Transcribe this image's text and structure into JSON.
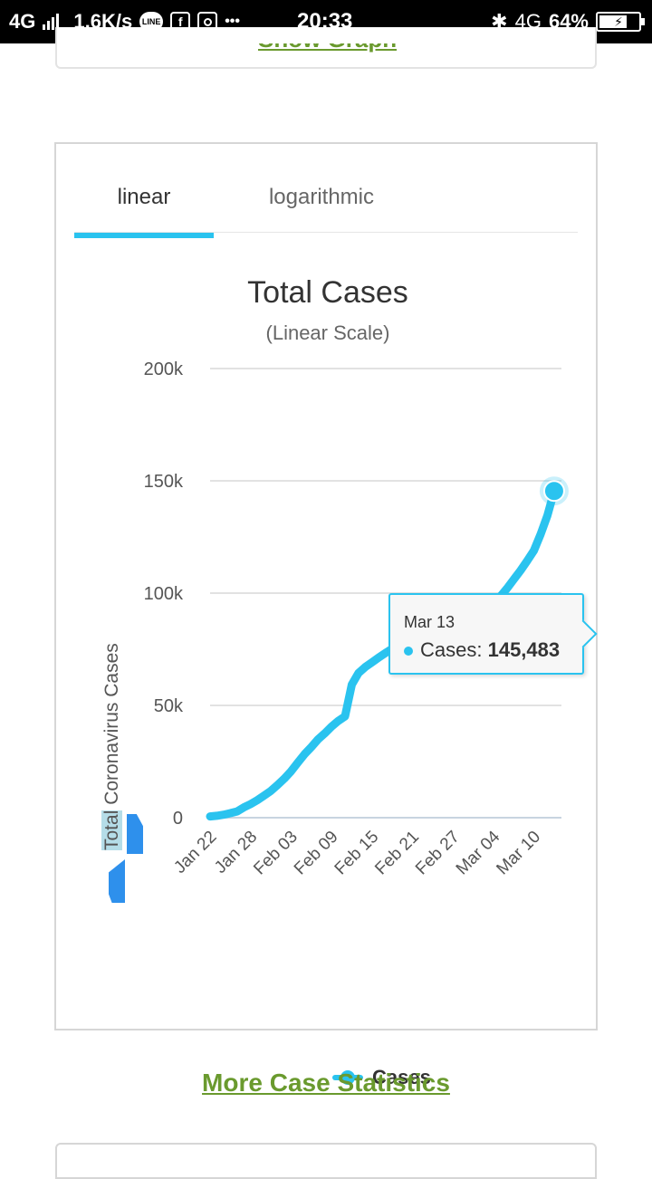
{
  "status_bar": {
    "network": "4G",
    "speed": "1,6K/s",
    "line_icon_text": "LINE",
    "facebook_icon_text": "f",
    "more_dots": "•••",
    "time": "20:33",
    "network_right": "4G",
    "battery": "64%"
  },
  "top_card": {
    "link_label": "Show Graph"
  },
  "tabs": [
    {
      "label": "linear",
      "selected": true
    },
    {
      "label": "logarithmic",
      "selected": false
    }
  ],
  "colors": {
    "series": "#2ac3ef",
    "link": "#6a9a2e",
    "share": "#2e90ec"
  },
  "chart_data": {
    "type": "line",
    "title": "Total Cases",
    "subtitle": "(Linear Scale)",
    "ylabel": "Total Coronavirus Cases",
    "ylim": [
      0,
      200000
    ],
    "yticks": [
      0,
      50000,
      100000,
      150000,
      200000
    ],
    "ytick_labels": [
      "0",
      "50k",
      "100k",
      "150k",
      "200k"
    ],
    "xtick_labels": [
      "Jan 22",
      "Jan 28",
      "Feb 03",
      "Feb 09",
      "Feb 15",
      "Feb 21",
      "Feb 27",
      "Mar 04",
      "Mar 10"
    ],
    "grid": true,
    "legend_position": "bottom-center",
    "series": [
      {
        "name": "Cases",
        "x": [
          "Jan 22",
          "Jan 23",
          "Jan 24",
          "Jan 25",
          "Jan 26",
          "Jan 27",
          "Jan 28",
          "Jan 29",
          "Jan 30",
          "Jan 31",
          "Feb 01",
          "Feb 02",
          "Feb 03",
          "Feb 04",
          "Feb 05",
          "Feb 06",
          "Feb 07",
          "Feb 08",
          "Feb 09",
          "Feb 10",
          "Feb 11",
          "Feb 12",
          "Feb 13",
          "Feb 14",
          "Feb 15",
          "Feb 16",
          "Feb 17",
          "Feb 18",
          "Feb 19",
          "Feb 20",
          "Feb 21",
          "Feb 22",
          "Feb 23",
          "Feb 24",
          "Feb 25",
          "Feb 26",
          "Feb 27",
          "Feb 28",
          "Feb 29",
          "Mar 01",
          "Mar 02",
          "Mar 03",
          "Mar 04",
          "Mar 05",
          "Mar 06",
          "Mar 07",
          "Mar 08",
          "Mar 09",
          "Mar 10",
          "Mar 11",
          "Mar 12",
          "Mar 13"
        ],
        "values": [
          580,
          845,
          1317,
          2015,
          2800,
          4581,
          6058,
          7813,
          9823,
          11950,
          14553,
          17391,
          20630,
          24545,
          28266,
          31439,
          34876,
          37552,
          40553,
          43099,
          45134,
          59287,
          64438,
          67100,
          69197,
          71329,
          73332,
          75184,
          75700,
          76677,
          77673,
          78651,
          79205,
          80087,
          80828,
          81820,
          83112,
          84615,
          86604,
          88585,
          90443,
          93016,
          95314,
          98425,
          102050,
          106099,
          109991,
          114381,
          118948,
          126214,
          134576,
          145483
        ]
      }
    ],
    "tooltip": {
      "date": "Mar 13",
      "series": "Cases",
      "value_text": "145,483"
    }
  },
  "legend": {
    "label": "Cases"
  },
  "more_link": "More Case Statistics"
}
